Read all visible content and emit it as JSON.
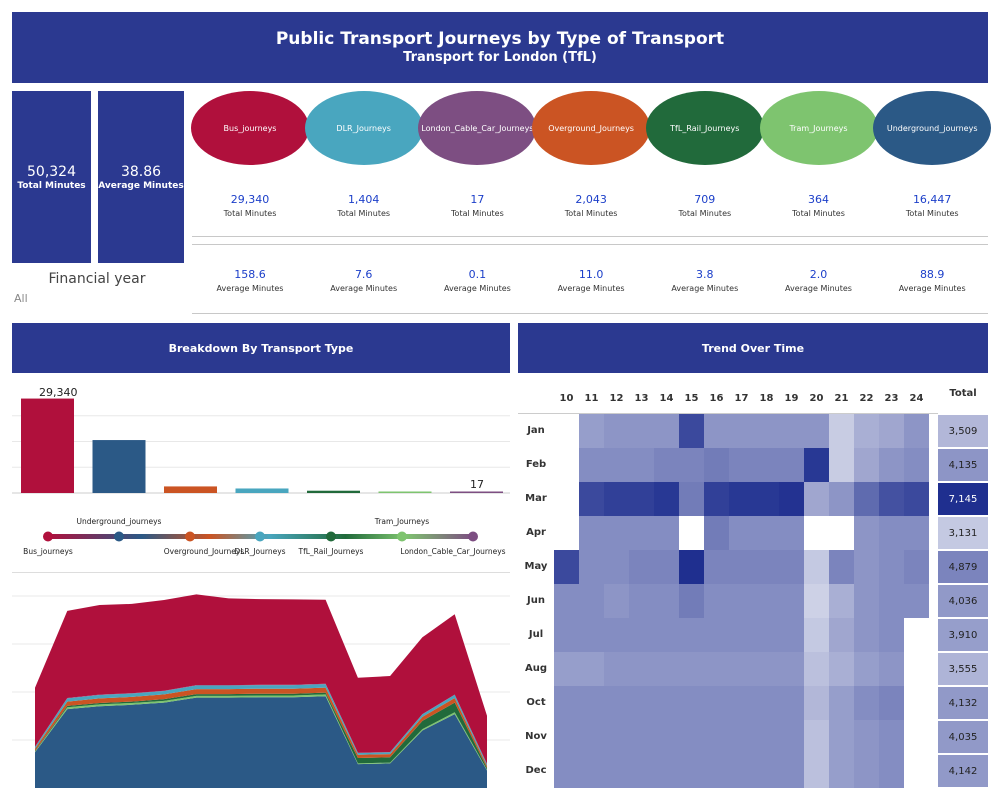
{
  "header": {
    "title": "Public Transport Journeys by Type of Transport",
    "subtitle": "Transport for London (TfL)"
  },
  "kpis": {
    "total_value": "50,324",
    "total_label": "Total Minutes",
    "avg_value": "38.86",
    "avg_label": "Average Minutes"
  },
  "filter": {
    "label": "Financial year",
    "value": "All"
  },
  "transport_types": [
    {
      "name": "Bus_journeys",
      "color": "#b0103c",
      "total": "29,340",
      "total_label": "Total Minutes",
      "avg": "158.6",
      "avg_label": "Average Minutes"
    },
    {
      "name": "DLR_Journeys",
      "color": "#49a6bf",
      "total": "1,404",
      "total_label": "Total Minutes",
      "avg": "7.6",
      "avg_label": "Average Minutes"
    },
    {
      "name": "London_Cable_Car_Journeys",
      "color": "#7d4e82",
      "total": "17",
      "total_label": "Total Minutes",
      "avg": "0.1",
      "avg_label": "Average Minutes"
    },
    {
      "name": "Overground_Journeys",
      "color": "#cb5423",
      "total": "2,043",
      "total_label": "Total Minutes",
      "avg": "11.0",
      "avg_label": "Average Minutes"
    },
    {
      "name": "TfL_Rail_Journeys",
      "color": "#216a3b",
      "total": "709",
      "total_label": "Total Minutes",
      "avg": "3.8",
      "avg_label": "Average Minutes"
    },
    {
      "name": "Tram_Journeys",
      "color": "#7ec46f",
      "total": "364",
      "total_label": "Total Minutes",
      "avg": "2.0",
      "avg_label": "Average Minutes"
    },
    {
      "name": "Underground_journeys",
      "color": "#2b5986",
      "total": "16,447",
      "total_label": "Total Minutes",
      "avg": "88.9",
      "avg_label": "Average Minutes"
    }
  ],
  "breakdown": {
    "title": "Breakdown By Transport Type",
    "legend_top": [
      "Underground_journeys",
      "Tram_Journeys"
    ],
    "legend_bottom": [
      "Bus_journeys",
      "Overground_Journeys",
      "DLR_Journeys",
      "TfL_Rail_Journeys",
      "London_Cable_Car_Journeys"
    ]
  },
  "trend": {
    "title": "Trend Over Time",
    "total_label": "Total"
  },
  "chart_data": [
    {
      "type": "bar",
      "categories": [
        "Bus_journeys",
        "Underground_journeys",
        "Overground_Journeys",
        "DLR_Journeys",
        "TfL_Rail_Journeys",
        "Tram_Journeys",
        "London_Cable_Car_Journeys"
      ],
      "values": [
        29340,
        16447,
        2043,
        1404,
        709,
        364,
        17
      ],
      "colors": [
        "#b0103c",
        "#2b5986",
        "#cb5423",
        "#49a6bf",
        "#216a3b",
        "#7ec46f",
        "#7d4e82"
      ],
      "data_labels": {
        "first": "29,340",
        "last": "17"
      },
      "ylim": [
        0,
        32000
      ],
      "grid": true
    },
    {
      "type": "area",
      "stacked": true,
      "x": [
        10,
        11,
        12,
        13,
        14,
        15,
        16,
        17,
        18,
        19,
        20,
        21,
        22,
        23,
        24
      ],
      "series": [
        {
          "name": "Underground_journeys",
          "color": "#2b5986",
          "values": [
            1000,
            2210,
            2290,
            2330,
            2390,
            2530,
            2530,
            2540,
            2540,
            2570,
            670,
            690,
            1610,
            2070,
            490
          ]
        },
        {
          "name": "Tram_Journeys",
          "color": "#7ec46f",
          "values": [
            20,
            50,
            50,
            50,
            50,
            50,
            50,
            50,
            50,
            50,
            20,
            20,
            40,
            50,
            20
          ]
        },
        {
          "name": "TfL_Rail_Journeys",
          "color": "#216a3b",
          "values": [
            20,
            40,
            40,
            40,
            50,
            50,
            50,
            50,
            50,
            50,
            150,
            150,
            230,
            270,
            50
          ]
        },
        {
          "name": "Overground_Journeys",
          "color": "#cb5423",
          "values": [
            60,
            120,
            130,
            130,
            130,
            140,
            140,
            140,
            140,
            140,
            90,
            90,
            110,
            130,
            60
          ]
        },
        {
          "name": "DLR_Journeys",
          "color": "#49a6bf",
          "values": [
            50,
            90,
            95,
            95,
            95,
            100,
            100,
            100,
            100,
            100,
            50,
            50,
            75,
            90,
            50
          ]
        },
        {
          "name": "London_Cable_Car_Journeys",
          "color": "#7d4e82",
          "values": [
            5,
            10,
            10,
            10,
            10,
            10,
            10,
            10,
            10,
            10,
            5,
            5,
            5,
            5,
            5
          ]
        },
        {
          "name": "Bus_journeys",
          "color": "#b0103c",
          "values": [
            1650,
            2440,
            2510,
            2500,
            2540,
            2540,
            2430,
            2400,
            2390,
            2350,
            2100,
            2130,
            2150,
            2250,
            1350
          ]
        }
      ],
      "ylim": [
        0,
        5600
      ],
      "grid": true
    },
    {
      "type": "heatmap",
      "columns": [
        "10",
        "11",
        "12",
        "13",
        "14",
        "15",
        "16",
        "17",
        "18",
        "19",
        "20",
        "21",
        "22",
        "23",
        "24"
      ],
      "rows": [
        "Jan",
        "Feb",
        "Mar",
        "Apr",
        "May",
        "Jun",
        "Jul",
        "Aug",
        "Oct",
        "Nov",
        "Dec"
      ],
      "color_range": [
        "#ffffff",
        "#1f2f8f"
      ],
      "intensity": [
        [
          null,
          0.35,
          0.4,
          0.4,
          0.4,
          0.85,
          0.4,
          0.4,
          0.4,
          0.4,
          0.4,
          0.08,
          0.25,
          0.3,
          0.4
        ],
        [
          null,
          0.45,
          0.45,
          0.45,
          0.5,
          0.5,
          0.55,
          0.5,
          0.5,
          0.5,
          0.95,
          0.08,
          0.3,
          0.4,
          0.45
        ],
        [
          null,
          0.85,
          0.9,
          0.9,
          0.95,
          0.55,
          0.9,
          0.95,
          0.95,
          0.98,
          0.3,
          0.4,
          0.65,
          0.8,
          0.85
        ],
        [
          null,
          0.45,
          0.45,
          0.45,
          0.45,
          0.0,
          0.55,
          0.45,
          0.45,
          0.45,
          0.0,
          0.0,
          0.4,
          0.45,
          0.45
        ],
        [
          0.85,
          0.45,
          0.45,
          0.5,
          0.5,
          1.0,
          0.5,
          0.5,
          0.5,
          0.5,
          0.1,
          0.5,
          0.4,
          0.45,
          0.5
        ],
        [
          0.45,
          0.45,
          0.4,
          0.45,
          0.45,
          0.55,
          0.45,
          0.45,
          0.45,
          0.45,
          0.05,
          0.25,
          0.4,
          0.45,
          0.45
        ],
        [
          0.45,
          0.45,
          0.45,
          0.45,
          0.45,
          0.45,
          0.45,
          0.45,
          0.45,
          0.45,
          0.1,
          0.3,
          0.4,
          0.45,
          null
        ],
        [
          0.35,
          0.35,
          0.4,
          0.4,
          0.4,
          0.4,
          0.4,
          0.4,
          0.4,
          0.4,
          0.15,
          0.25,
          0.35,
          0.4,
          null
        ],
        [
          0.45,
          0.45,
          0.45,
          0.45,
          0.45,
          0.45,
          0.45,
          0.45,
          0.45,
          0.45,
          0.2,
          0.35,
          0.45,
          0.5,
          null
        ],
        [
          0.45,
          0.45,
          0.45,
          0.45,
          0.45,
          0.45,
          0.45,
          0.45,
          0.45,
          0.45,
          0.15,
          0.35,
          0.4,
          0.45,
          null
        ],
        [
          0.45,
          0.45,
          0.45,
          0.45,
          0.45,
          0.45,
          0.45,
          0.45,
          0.45,
          0.45,
          0.15,
          0.35,
          0.4,
          0.45,
          null
        ]
      ],
      "totals": [
        "3,509",
        "4,135",
        "7,145",
        "3,131",
        "4,879",
        "4,036",
        "3,910",
        "3,555",
        "4,132",
        "4,035",
        "4,142"
      ],
      "totals_intensity": [
        0.2,
        0.4,
        1.0,
        0.1,
        0.5,
        0.38,
        0.35,
        0.22,
        0.38,
        0.38,
        0.38
      ]
    }
  ]
}
